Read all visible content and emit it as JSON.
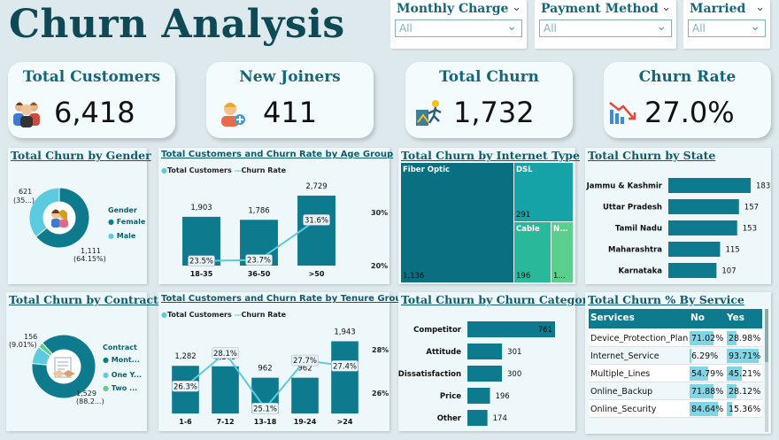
{
  "title": "Churn Analysis",
  "colors": {
    "teal": "#0e7a8d",
    "light": "#5ccbdf",
    "dark": "#0a5f6c",
    "cable": "#2ab89a",
    "fiber": "#0a6f80",
    "dsl": "#16a3a8",
    "other": "#5bd08c",
    "bg": "#dde9ec"
  },
  "slicers": [
    {
      "label": "Monthly Charge",
      "value": "All"
    },
    {
      "label": "Payment Method",
      "value": "All"
    },
    {
      "label": "Married",
      "value": "All"
    }
  ],
  "kpis": [
    {
      "title": "Total Customers",
      "value": "6,418",
      "icon": "people-group-icon"
    },
    {
      "title": "New Joiners",
      "value": "411",
      "icon": "new-user-icon"
    },
    {
      "title": "Total Churn",
      "value": "1,732",
      "icon": "exit-person-icon"
    },
    {
      "title": "Churn Rate",
      "value": "27.0%",
      "icon": "declining-chart-icon"
    }
  ],
  "gender": {
    "title": "Total Churn by Gender",
    "legend_title": "Gender",
    "legend": [
      "Female",
      "Male"
    ],
    "label_a": "621",
    "label_a2": "(35...)",
    "label_b": "1,111",
    "label_b2": "(64.15%)"
  },
  "age": {
    "title": "Total Customers and Churn Rate by Age Group",
    "legend": [
      "Total Customers",
      "Churn Rate"
    ],
    "axis_right": [
      "30%",
      "20%"
    ],
    "categories": [
      "18-35",
      "36-50",
      ">50"
    ],
    "customers": [
      "1,903",
      "1,786",
      "2,729"
    ],
    "rates": [
      "23.5%",
      "23.7%",
      "31.6%"
    ]
  },
  "internet": {
    "title": "Total Churn by Internet Type",
    "fiber": "Fiber Optic",
    "fiber_v": "1,136",
    "dsl": "DSL",
    "dsl_v": "291",
    "cable": "Cable",
    "cable_v": "196",
    "other": "N...",
    "other_v": "1..."
  },
  "state": {
    "title": "Total Churn by State",
    "rows": [
      {
        "name": "Jammu & Kashmir",
        "value": "183"
      },
      {
        "name": "Uttar Pradesh",
        "value": "157"
      },
      {
        "name": "Tamil Nadu",
        "value": "153"
      },
      {
        "name": "Maharashtra",
        "value": "115"
      },
      {
        "name": "Karnataka",
        "value": "107"
      }
    ]
  },
  "contract": {
    "title": "Total Churn by Contract",
    "legend_title": "Contract",
    "legend": [
      "Mont...",
      "One Y...",
      "Two ..."
    ],
    "label_a": "156",
    "label_a2": "(9.01%)",
    "label_b": "1,529",
    "label_b2": "(88.2...)"
  },
  "tenure": {
    "title": "Total Customers and Churn Rate by Tenure Group",
    "legend": [
      "Total Customers",
      "Churn Rate"
    ],
    "axis_right": [
      "28%",
      "26%"
    ],
    "categories": [
      "1-6",
      "7-12",
      "13-18",
      "19-24",
      ">24"
    ],
    "customers": [
      "1,282",
      "1,269",
      "962",
      "962",
      "1,943"
    ],
    "rates": [
      "26.3%",
      "28.1%",
      "25.1%",
      "27.7%",
      "27.4%"
    ]
  },
  "category": {
    "title": "Total Churn by Churn Category",
    "rows": [
      {
        "name": "Competitor",
        "value": "761"
      },
      {
        "name": "Attitude",
        "value": "301"
      },
      {
        "name": "Dissatisfaction",
        "value": "300"
      },
      {
        "name": "Price",
        "value": "196"
      },
      {
        "name": "Other",
        "value": "174"
      }
    ]
  },
  "service": {
    "title": "Total Churn % By Service",
    "headers": [
      "Services",
      "No",
      "Yes"
    ],
    "rows": [
      {
        "name": "Device_Protection_Plan",
        "no": "71.02%",
        "yes": "28.98%"
      },
      {
        "name": "Internet_Service",
        "no": "6.29%",
        "yes": "93.71%"
      },
      {
        "name": "Multiple_Lines",
        "no": "54.79%",
        "yes": "45.21%"
      },
      {
        "name": "Online_Backup",
        "no": "71.88%",
        "yes": "28.12%"
      },
      {
        "name": "Online_Security",
        "no": "84.64%",
        "yes": "15.36%"
      }
    ]
  },
  "chart_data": [
    {
      "type": "pie",
      "title": "Total Churn by Gender",
      "categories": [
        "Female",
        "Male"
      ],
      "values": [
        1111,
        621
      ]
    },
    {
      "type": "bar",
      "title": "Total Customers and Churn Rate by Age Group",
      "categories": [
        "18-35",
        "36-50",
        ">50"
      ],
      "series": [
        {
          "name": "Total Customers",
          "values": [
            1903,
            1786,
            2729
          ]
        },
        {
          "name": "Churn Rate",
          "values": [
            23.5,
            23.7,
            31.6
          ]
        }
      ]
    },
    {
      "type": "bar",
      "title": "Total Churn by Internet Type",
      "categories": [
        "Fiber Optic",
        "DSL",
        "Cable",
        "N..."
      ],
      "values": [
        1136,
        291,
        196,
        null
      ]
    },
    {
      "type": "bar",
      "title": "Total Churn by State",
      "categories": [
        "Jammu & Kashmir",
        "Uttar Pradesh",
        "Tamil Nadu",
        "Maharashtra",
        "Karnataka"
      ],
      "values": [
        183,
        157,
        153,
        115,
        107
      ]
    },
    {
      "type": "pie",
      "title": "Total Churn by Contract",
      "categories": [
        "Mont...",
        "One Y...",
        "Two ..."
      ],
      "values": [
        1529,
        156,
        47
      ]
    },
    {
      "type": "bar",
      "title": "Total Customers and Churn Rate by Tenure Group",
      "categories": [
        "1-6",
        "7-12",
        "13-18",
        "19-24",
        ">24"
      ],
      "series": [
        {
          "name": "Total Customers",
          "values": [
            1282,
            1269,
            962,
            962,
            1943
          ]
        },
        {
          "name": "Churn Rate",
          "values": [
            26.3,
            28.1,
            25.1,
            27.7,
            27.4
          ]
        }
      ]
    },
    {
      "type": "bar",
      "title": "Total Churn by Churn Category",
      "categories": [
        "Competitor",
        "Attitude",
        "Dissatisfaction",
        "Price",
        "Other"
      ],
      "values": [
        761,
        301,
        300,
        196,
        174
      ]
    },
    {
      "type": "table",
      "title": "Total Churn % By Service",
      "categories": [
        "Device_Protection_Plan",
        "Internet_Service",
        "Multiple_Lines",
        "Online_Backup",
        "Online_Security"
      ],
      "series": [
        {
          "name": "No",
          "values": [
            71.02,
            6.29,
            54.79,
            71.88,
            84.64
          ]
        },
        {
          "name": "Yes",
          "values": [
            28.98,
            93.71,
            45.21,
            28.12,
            15.36
          ]
        }
      ]
    }
  ]
}
